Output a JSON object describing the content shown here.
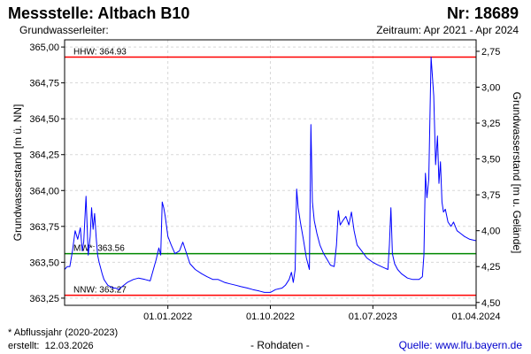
{
  "header": {
    "title_left": "Messstelle: Altbach B10",
    "title_right": "Nr: 18689",
    "subtitle_left": "Grundwasserleiter:",
    "subtitle_right": "Zeitraum: Apr 2021 - Apr 2024"
  },
  "footer": {
    "note": "* Abflussjahr (2020-2023)",
    "created_label": "erstellt:",
    "created_date": "12.03.2026",
    "raw_data": "- Rohdaten -",
    "source": "Quelle: www.lfu.bayern.de"
  },
  "chart_data": {
    "type": "line",
    "title": "",
    "ylabel": "Grundwasserstand [m ü. NN]",
    "y2label": "Grundwasserstand [m u. Gelände]",
    "xlim": [
      "2021-04-01",
      "2024-04-01"
    ],
    "ylim": [
      363.2,
      365.05
    ],
    "y2lim": [
      4.52,
      2.67
    ],
    "grid": true,
    "yticks": [
      363.25,
      363.5,
      363.75,
      364.0,
      364.25,
      364.5,
      364.75,
      365.0
    ],
    "ytick_labels": [
      "363,25",
      "363,50",
      "363,75",
      "364,00",
      "364,25",
      "364,50",
      "364,75",
      "365,00"
    ],
    "y2ticks": [
      2.75,
      3.0,
      3.25,
      3.5,
      3.75,
      4.0,
      4.25,
      4.5
    ],
    "y2tick_labels": [
      "2,75",
      "3,00",
      "3,25",
      "3,50",
      "3,75",
      "4,00",
      "4,25",
      "4,50"
    ],
    "xticks": [
      "2022-01-01",
      "2022-10-01",
      "2023-07-01",
      "2024-04-01"
    ],
    "xtick_labels": [
      "01.01.2022",
      "01.10.2022",
      "01.07.2023",
      "01.04.2024"
    ],
    "reference_lines": [
      {
        "label": "HHW: 364.93",
        "value": 364.93,
        "color": "#ff0000"
      },
      {
        "label": "MW*: 363.56",
        "value": 363.56,
        "color": "#008800"
      },
      {
        "label": "NNW: 363.27",
        "value": 363.27,
        "color": "#ff0000"
      }
    ],
    "series": [
      {
        "color": "#0000ff",
        "x": [
          "2021-04-01",
          "2021-04-08",
          "2021-04-15",
          "2021-04-22",
          "2021-04-29",
          "2021-05-06",
          "2021-05-13",
          "2021-05-18",
          "2021-05-22",
          "2021-05-28",
          "2021-06-03",
          "2021-06-08",
          "2021-06-12",
          "2021-06-16",
          "2021-06-20",
          "2021-06-24",
          "2021-06-28",
          "2021-07-02",
          "2021-07-06",
          "2021-07-10",
          "2021-07-15",
          "2021-07-20",
          "2021-07-25",
          "2021-08-01",
          "2021-08-08",
          "2021-08-15",
          "2021-08-22",
          "2021-09-01",
          "2021-09-15",
          "2021-10-01",
          "2021-10-15",
          "2021-11-01",
          "2021-11-15",
          "2021-12-01",
          "2021-12-08",
          "2021-12-13",
          "2021-12-17",
          "2021-12-21",
          "2021-12-25",
          "2022-01-01",
          "2022-01-10",
          "2022-01-20",
          "2022-02-01",
          "2022-02-10",
          "2022-02-20",
          "2022-03-01",
          "2022-03-15",
          "2022-04-01",
          "2022-04-15",
          "2022-05-01",
          "2022-05-15",
          "2022-06-01",
          "2022-06-15",
          "2022-07-01",
          "2022-07-15",
          "2022-08-01",
          "2022-08-15",
          "2022-09-01",
          "2022-09-15",
          "2022-10-01",
          "2022-10-15",
          "2022-11-01",
          "2022-11-10",
          "2022-11-20",
          "2022-11-26",
          "2022-12-01",
          "2022-12-06",
          "2022-12-10",
          "2022-12-14",
          "2022-12-20",
          "2022-12-28",
          "2023-01-05",
          "2023-01-13",
          "2023-01-17",
          "2023-01-21",
          "2023-01-26",
          "2023-02-02",
          "2023-02-10",
          "2023-02-20",
          "2023-03-01",
          "2023-03-10",
          "2023-03-20",
          "2023-03-26",
          "2023-03-31",
          "2023-04-05",
          "2023-04-12",
          "2023-04-20",
          "2023-04-28",
          "2023-05-05",
          "2023-05-12",
          "2023-05-20",
          "2023-06-01",
          "2023-06-15",
          "2023-07-01",
          "2023-07-15",
          "2023-08-01",
          "2023-08-10",
          "2023-08-14",
          "2023-08-18",
          "2023-08-22",
          "2023-08-28",
          "2023-09-05",
          "2023-09-15",
          "2023-10-01",
          "2023-10-15",
          "2023-11-01",
          "2023-11-10",
          "2023-11-14",
          "2023-11-18",
          "2023-11-22",
          "2023-11-27",
          "2023-12-03",
          "2023-12-10",
          "2023-12-15",
          "2023-12-20",
          "2023-12-24",
          "2023-12-28",
          "2024-01-01",
          "2024-01-05",
          "2024-01-10",
          "2024-01-17",
          "2024-01-25",
          "2024-02-01",
          "2024-02-10",
          "2024-02-20",
          "2024-03-01",
          "2024-03-15",
          "2024-04-01"
        ],
        "y": [
          363.45,
          363.47,
          363.47,
          363.58,
          363.72,
          363.66,
          363.74,
          363.58,
          363.64,
          363.96,
          363.55,
          363.68,
          363.88,
          363.73,
          363.84,
          363.68,
          363.55,
          363.5,
          363.46,
          363.42,
          363.38,
          363.36,
          363.34,
          363.33,
          363.32,
          363.32,
          363.31,
          363.33,
          363.36,
          363.38,
          363.39,
          363.38,
          363.37,
          363.52,
          363.6,
          363.55,
          363.92,
          363.88,
          363.82,
          363.68,
          363.62,
          363.56,
          363.58,
          363.64,
          363.56,
          363.49,
          363.45,
          363.42,
          363.4,
          363.38,
          363.38,
          363.36,
          363.35,
          363.34,
          363.33,
          363.32,
          363.31,
          363.3,
          363.29,
          363.29,
          363.31,
          363.32,
          363.34,
          363.38,
          363.43,
          363.36,
          363.45,
          364.01,
          363.88,
          363.78,
          363.66,
          363.53,
          363.45,
          364.46,
          363.92,
          363.79,
          363.7,
          363.62,
          363.56,
          363.52,
          363.48,
          363.47,
          363.62,
          363.86,
          363.76,
          363.79,
          363.82,
          363.76,
          363.85,
          363.72,
          363.62,
          363.58,
          363.53,
          363.5,
          363.48,
          363.46,
          363.45,
          363.62,
          363.88,
          363.56,
          363.49,
          363.45,
          363.42,
          363.39,
          363.38,
          363.38,
          363.4,
          363.55,
          364.12,
          363.95,
          364.08,
          364.93,
          364.66,
          364.18,
          364.38,
          364.05,
          364.2,
          363.92,
          363.85,
          363.87,
          363.78,
          363.75,
          363.78,
          363.72,
          363.7,
          363.68,
          363.66,
          363.65
        ]
      }
    ]
  }
}
